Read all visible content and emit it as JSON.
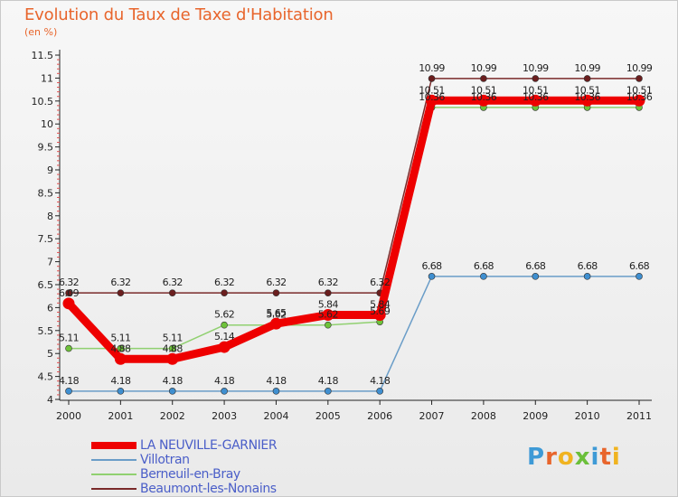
{
  "title": "Evolution du Taux de Taxe d'Habitation",
  "unit": "(en %)",
  "logo": "Proxiti",
  "logo_colors": [
    "#3e9ad6",
    "#e8652c",
    "#f0b320",
    "#6bbf3a",
    "#3e9ad6",
    "#e8652c",
    "#f0b320"
  ],
  "chart_data": {
    "type": "line",
    "title": "Evolution du Taux de Taxe d'Habitation",
    "ylabel": "(en %)",
    "xlabel": "",
    "ylim": [
      4,
      11.5
    ],
    "y_ticks": [
      "4",
      "4.5",
      "5",
      "5.5",
      "6",
      "6.5",
      "7",
      "7.5",
      "8",
      "8.5",
      "9",
      "9.5",
      "10",
      "10.5",
      "11",
      "11.5"
    ],
    "categories": [
      "2000",
      "2001",
      "2002",
      "2003",
      "2004",
      "2005",
      "2006",
      "2007",
      "2008",
      "2009",
      "2010",
      "2011"
    ],
    "grid": false,
    "legend_position": "bottom-left",
    "series": [
      {
        "name": "Beaumont-les-Nonains",
        "color": "#7a2a2a",
        "point_color": "#6b1e1e",
        "values": [
          6.32,
          6.32,
          6.32,
          6.32,
          6.32,
          6.32,
          6.32,
          10.99,
          10.99,
          10.99,
          10.99,
          10.99
        ],
        "labels": [
          "6.32",
          "6.32",
          "6.32",
          "6.32",
          "6.32",
          "6.32",
          "6.32",
          "10.99",
          "10.99",
          "10.99",
          "10.99",
          "10.99"
        ]
      },
      {
        "name": "Berneuil-en-Bray",
        "color": "#90d070",
        "point_color": "#6ec23a",
        "values": [
          5.11,
          5.11,
          5.11,
          5.62,
          5.62,
          5.62,
          5.69,
          10.36,
          10.36,
          10.36,
          10.36,
          10.36
        ],
        "labels": [
          "5.11",
          "5.11",
          "5.11",
          "5.62",
          "5.62",
          "5.62",
          "5.69",
          "10.36",
          "10.36",
          "10.36",
          "10.36",
          "10.36"
        ]
      },
      {
        "name": "Villotran",
        "color": "#6a9dc8",
        "point_color": "#3f8fd0",
        "values": [
          4.18,
          4.18,
          4.18,
          4.18,
          4.18,
          4.18,
          4.18,
          6.68,
          6.68,
          6.68,
          6.68,
          6.68
        ],
        "labels": [
          "4.18",
          "4.18",
          "4.18",
          "4.18",
          "4.18",
          "4.18",
          "4.18",
          "6.68",
          "6.68",
          "6.68",
          "6.68",
          "6.68"
        ]
      },
      {
        "name": "LA NEUVILLE-GARNIER",
        "color": "#ee0000",
        "point_color": "#ee0000",
        "values": [
          6.09,
          4.88,
          4.88,
          5.14,
          5.65,
          5.84,
          5.84,
          10.51,
          10.51,
          10.51,
          10.51,
          10.51
        ],
        "labels": [
          "6.09",
          "4.88",
          "4.88",
          "5.14",
          "5.65",
          "5.84",
          "5.84",
          "10.51",
          "10.51",
          "10.51",
          "10.51",
          "10.51"
        ]
      }
    ]
  },
  "legend": [
    {
      "label": "LA NEUVILLE-GARNIER",
      "color": "#ee0000"
    },
    {
      "label": "Villotran",
      "color": "#6a9dc8"
    },
    {
      "label": "Berneuil-en-Bray",
      "color": "#90d070"
    },
    {
      "label": "Beaumont-les-Nonains",
      "color": "#7a2a2a"
    }
  ]
}
